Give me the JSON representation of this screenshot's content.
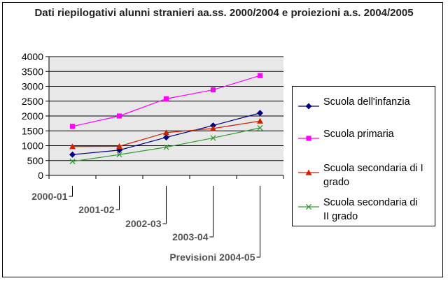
{
  "chart_data": {
    "type": "line",
    "title": "Dati riepilogativi alunni stranieri aa.ss. 2000/2004 e proiezioni a.s. 2004/2005",
    "categories": [
      "2000-01",
      "2001-02",
      "2002-03",
      "2003-04",
      "Previsioni 2004-05"
    ],
    "ylim": [
      0,
      4000
    ],
    "yticks": [
      0,
      500,
      1000,
      1500,
      2000,
      2500,
      3000,
      3500,
      4000
    ],
    "grid": true,
    "legend_position": "right",
    "series": [
      {
        "name": "Scuola dell'infanzia",
        "color": "#000080",
        "marker": "diamond",
        "values": [
          700,
          850,
          1280,
          1680,
          2100
        ]
      },
      {
        "name": "Scuola primaria",
        "color": "#ff00ff",
        "marker": "square",
        "values": [
          1650,
          2000,
          2580,
          2880,
          3360
        ]
      },
      {
        "name": "Scuola secondaria di I grado",
        "color": "#cc2200",
        "marker": "triangle",
        "values": [
          970,
          980,
          1440,
          1580,
          1830
        ]
      },
      {
        "name": "Scuola secondaria di II grado",
        "color": "#339933",
        "marker": "x",
        "values": [
          470,
          700,
          950,
          1260,
          1600
        ]
      }
    ]
  },
  "legend": {
    "items": [
      {
        "lines": [
          "Scuola dell'infanzia"
        ]
      },
      {
        "lines": [
          "Scuola primaria"
        ]
      },
      {
        "lines": [
          "Scuola secondaria di I",
          "grado"
        ]
      },
      {
        "lines": [
          "Scuola secondaria di",
          "II grado"
        ]
      }
    ]
  }
}
